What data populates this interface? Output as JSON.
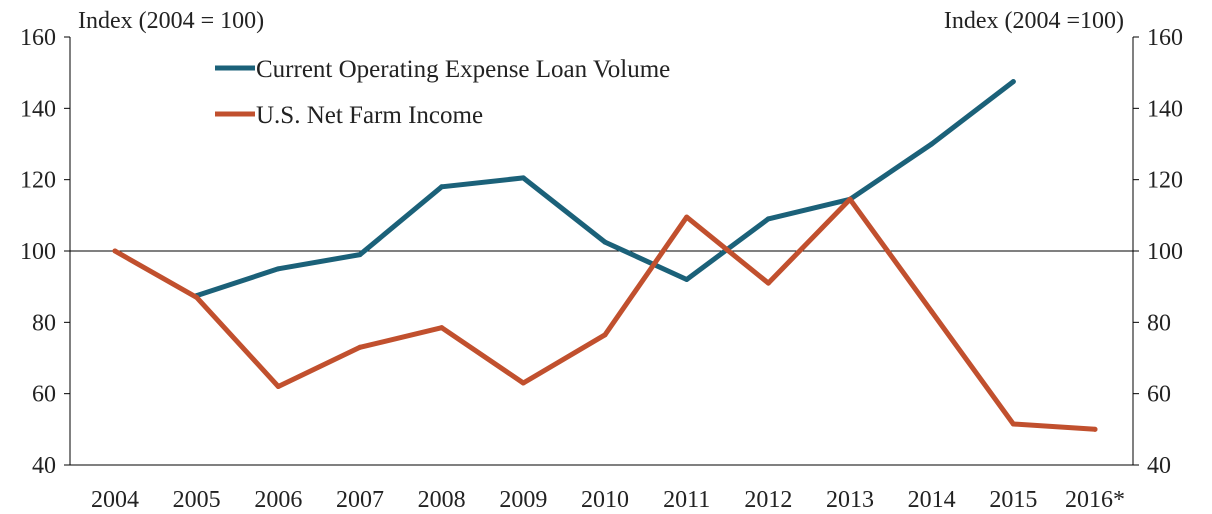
{
  "chart_data": {
    "type": "line",
    "left_axis_title": "Index (2004 = 100)",
    "right_axis_title": "Index (2004 =100)",
    "categories": [
      "2004",
      "2005",
      "2006",
      "2007",
      "2008",
      "2009",
      "2010",
      "2011",
      "2012",
      "2013",
      "2014",
      "2015",
      "2016*"
    ],
    "ylim": [
      40,
      160
    ],
    "yticks": [
      40,
      60,
      80,
      100,
      120,
      140,
      160
    ],
    "reference_line": 100,
    "series": [
      {
        "name": "Current Operating Expense Loan Volume",
        "color": "#1b6179",
        "values": [
          null,
          87.5,
          95,
          99,
          118,
          120.5,
          102.5,
          92,
          109,
          114.5,
          130,
          147.5,
          null
        ]
      },
      {
        "name": "U.S. Net Farm Income",
        "color": "#c1502e",
        "values": [
          100,
          87,
          62,
          73,
          78.5,
          63,
          76.5,
          109.5,
          91,
          114.5,
          83,
          51.5,
          50
        ]
      }
    ]
  }
}
